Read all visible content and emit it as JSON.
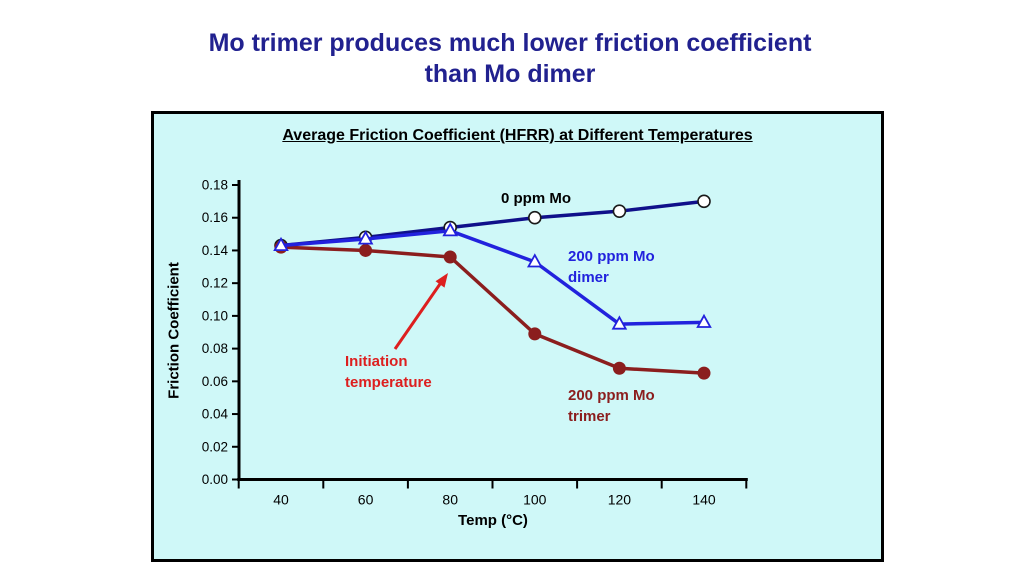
{
  "slide": {
    "title_line1": "Mo trimer produces much lower friction coefficient",
    "title_line2": "than Mo dimer"
  },
  "chart": {
    "title": "Average Friction Coefficient (HFRR) at Different Temperatures",
    "x_axis_label": "Temp (°C)",
    "y_axis_label": "Friction Coefficient"
  },
  "annotations": {
    "series0_label": "0 ppm Mo",
    "dimer_line1": "200 ppm Mo",
    "dimer_line2": "dimer",
    "trimer_line1": "200 ppm Mo",
    "trimer_line2": "trimer",
    "initiation_line1": "Initiation",
    "initiation_line2": "temperature"
  },
  "colors": {
    "background": "#FFFFFF",
    "chart_bg": "#CFF8F8",
    "title_navy": "#21218F",
    "series0": "#10108A",
    "dimer": "#2222DD",
    "trimer": "#8B1E1E",
    "annotation_red": "#DD1F1F",
    "axis": "#000000"
  },
  "chart_data": {
    "type": "line",
    "title": "Average Friction Coefficient (HFRR) at Different Temperatures",
    "xlabel": "Temp (°C)",
    "ylabel": "Friction Coefficient",
    "categories": [
      40,
      60,
      80,
      100,
      120,
      140
    ],
    "x_tick_labels": [
      "40",
      "60",
      "80",
      "100",
      "120",
      "140"
    ],
    "y_ticks": [
      "0.00",
      "0.02",
      "0.04",
      "0.06",
      "0.08",
      "0.10",
      "0.12",
      "0.14",
      "0.16",
      "0.18"
    ],
    "ylim": [
      0,
      0.18
    ],
    "grid": false,
    "legend": "inline-labels",
    "series": [
      {
        "name": "0 ppm Mo",
        "marker": "circle-open",
        "color_key": "series0",
        "values": [
          0.143,
          0.148,
          0.154,
          0.16,
          0.164,
          0.17
        ]
      },
      {
        "name": "200 ppm Mo dimer",
        "marker": "triangle-open",
        "color_key": "dimer",
        "values": [
          0.143,
          0.147,
          0.152,
          0.133,
          0.095,
          0.096
        ]
      },
      {
        "name": "200 ppm Mo trimer",
        "marker": "circle-filled",
        "color_key": "trimer",
        "values": [
          0.142,
          0.14,
          0.136,
          0.089,
          0.068,
          0.065
        ]
      }
    ]
  }
}
